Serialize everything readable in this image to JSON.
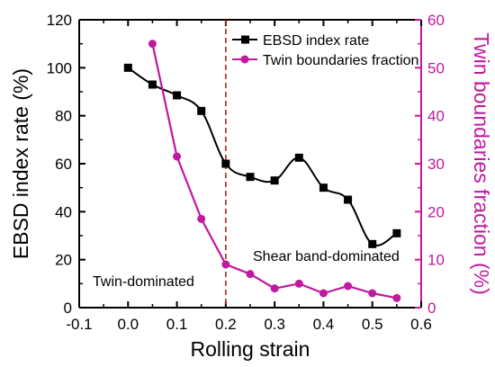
{
  "chart_data": {
    "type": "line",
    "x_axis": {
      "label": "Rolling strain",
      "range": [
        -0.1,
        0.6
      ],
      "ticks": [
        -0.1,
        0.0,
        0.1,
        0.2,
        0.3,
        0.4,
        0.5,
        0.6
      ],
      "tick_labels": [
        "-0.1",
        "0.0",
        "0.1",
        "0.2",
        "0.3",
        "0.4",
        "0.5",
        "0.6"
      ]
    },
    "y_left_axis": {
      "label": "EBSD index rate (%)",
      "range": [
        0,
        120
      ],
      "ticks": [
        0,
        20,
        40,
        60,
        80,
        100,
        120
      ],
      "tick_labels": [
        "0",
        "20",
        "40",
        "60",
        "80",
        "100",
        "120"
      ]
    },
    "y_right_axis": {
      "label": "Twin boundaries fraction (%)",
      "range": [
        0,
        60
      ],
      "ticks": [
        0,
        10,
        20,
        30,
        40,
        50,
        60
      ],
      "tick_labels": [
        "0",
        "10",
        "20",
        "30",
        "40",
        "50",
        "60"
      ],
      "color": "#c0199e"
    },
    "series": [
      {
        "name": "EBSD index rate",
        "axis": "left",
        "marker": "square",
        "color": "#000000",
        "smooth": true,
        "points": [
          {
            "x": 0.0,
            "y": 100
          },
          {
            "x": 0.05,
            "y": 93
          },
          {
            "x": 0.1,
            "y": 88.5
          },
          {
            "x": 0.15,
            "y": 82
          },
          {
            "x": 0.2,
            "y": 60
          },
          {
            "x": 0.25,
            "y": 54.5
          },
          {
            "x": 0.3,
            "y": 53
          },
          {
            "x": 0.35,
            "y": 62.5
          },
          {
            "x": 0.4,
            "y": 50
          },
          {
            "x": 0.45,
            "y": 45
          },
          {
            "x": 0.5,
            "y": 26.5
          },
          {
            "x": 0.55,
            "y": 31
          }
        ]
      },
      {
        "name": "Twin boundaries fraction",
        "axis": "right",
        "marker": "circle",
        "color": "#c0199e",
        "smooth": false,
        "points": [
          {
            "x": 0.05,
            "y": 55
          },
          {
            "x": 0.1,
            "y": 31.5
          },
          {
            "x": 0.15,
            "y": 18.5
          },
          {
            "x": 0.2,
            "y": 9
          },
          {
            "x": 0.25,
            "y": 7
          },
          {
            "x": 0.3,
            "y": 4
          },
          {
            "x": 0.35,
            "y": 5
          },
          {
            "x": 0.4,
            "y": 3
          },
          {
            "x": 0.45,
            "y": 4.5
          },
          {
            "x": 0.5,
            "y": 3
          },
          {
            "x": 0.55,
            "y": 2
          }
        ]
      }
    ],
    "divider": {
      "x": 0.2,
      "style": "dashed",
      "color": "#b22222"
    },
    "annotations": [
      {
        "text": "Twin-dominated"
      },
      {
        "text": "Shear band-dominated"
      }
    ],
    "legend": {
      "placement": "top-right"
    }
  }
}
